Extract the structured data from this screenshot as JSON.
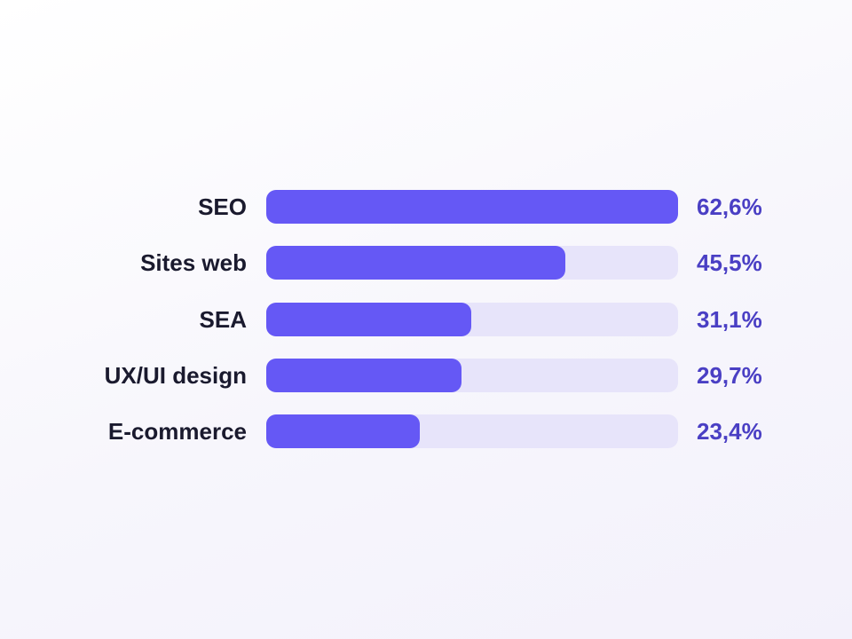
{
  "chart_data": {
    "type": "bar",
    "orientation": "horizontal",
    "title": "",
    "xlabel": "",
    "ylabel": "",
    "categories": [
      "SEO",
      "Sites web",
      "SEA",
      "UX/UI design",
      "E-commerce"
    ],
    "values": [
      62.6,
      45.5,
      31.1,
      29.7,
      23.4
    ],
    "value_labels": [
      "62,6%",
      "45,5%",
      "31,1%",
      "29,7%",
      "23,4%"
    ],
    "xlim": [
      0,
      62.6
    ],
    "grid": false,
    "legend": "none",
    "colors": {
      "bar": "#6558f5",
      "track": "#e7e4fa",
      "label": "#1a1a2e",
      "value": "#4a3fc4"
    }
  }
}
